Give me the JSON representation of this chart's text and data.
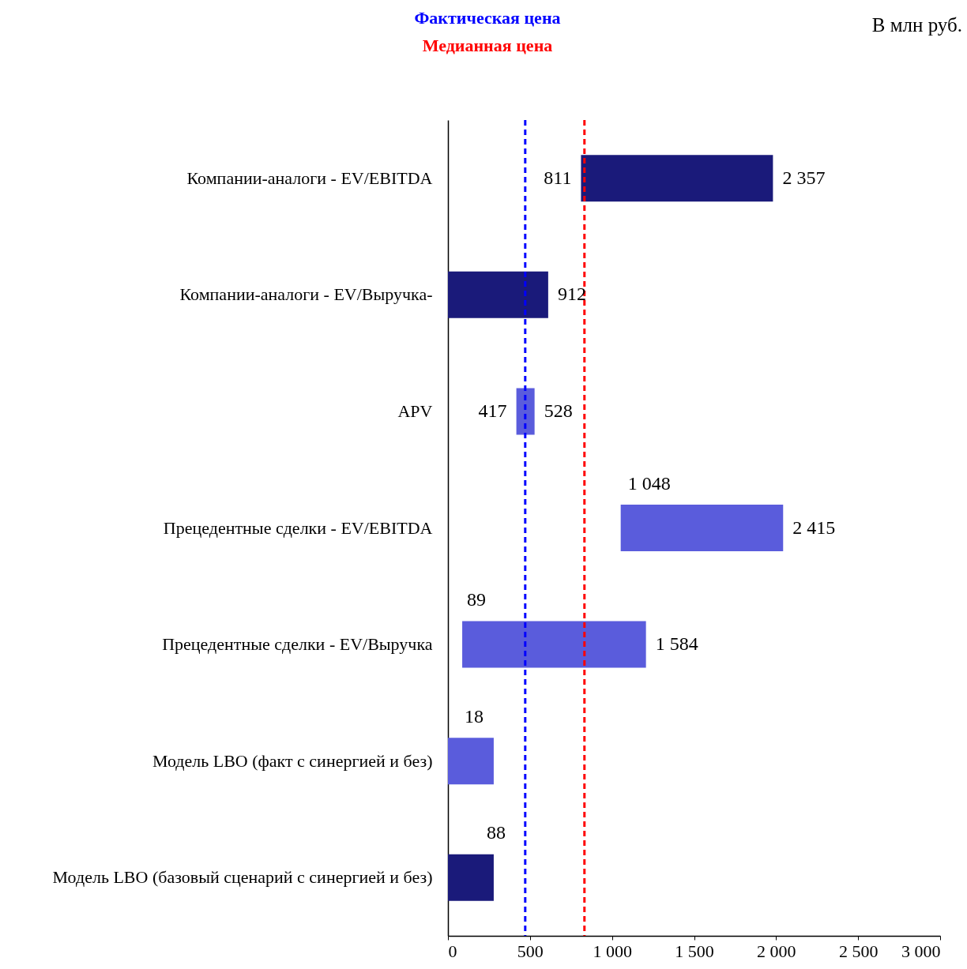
{
  "chart_data": {
    "type": "bar",
    "orientation": "horizontal",
    "categories": [
      "Компании-аналоги - EV/EBITDA",
      "Компании-аналоги - EV/Выручка-",
      "APV",
      "Прецедентные сделки - EV/EBITDA",
      "Прецедентные сделки - EV/Выручка",
      "Модель LBO (факт с синергией и без)",
      "Модель LBO (базовый сценарий с синергией и без)"
    ],
    "base": [
      811,
      0,
      417,
      1053,
      87,
      0,
      0
    ],
    "values": [
      1170,
      611,
      111,
      990,
      1120,
      279,
      279
    ],
    "colors": [
      "#1a1a7a",
      "#1a1a7a",
      "#5a5cdc",
      "#5a5cdc",
      "#5a5cdc",
      "#5a5cdc",
      "#1a1a7a"
    ],
    "xlim": [
      0,
      3000
    ],
    "xticks": [
      0,
      500,
      {
        "value": 1000,
        "label": "1 000"
      },
      {
        "value": 1500,
        "label": "1 500"
      },
      {
        "value": 2000,
        "label": "2 000"
      },
      {
        "value": 2500,
        "label": "2 500"
      },
      {
        "value": 3000,
        "label": "3 000"
      }
    ],
    "ref_lines": [
      {
        "axis": "x",
        "value": 471,
        "label": "Фактическая цена",
        "color": "#0000ff",
        "line_style": "dashed"
      },
      {
        "axis": "x",
        "value": 832,
        "label": "Медианная цена",
        "color": "#ff0000",
        "line_style": "dashed"
      }
    ],
    "annotations": [
      {
        "text": "811",
        "x": 811,
        "y": "Компании-аналоги - EV/EBITDA"
      },
      {
        "text": "2 357",
        "x": 1981,
        "y": "Компании-аналоги - EV/EBITDA"
      },
      {
        "text": "912",
        "x": 611,
        "y": "Компании-аналоги - EV/Выручка-"
      },
      {
        "text": "417",
        "x": 417,
        "y": "APV"
      },
      {
        "text": "528",
        "x": 528,
        "y": "APV"
      },
      {
        "text": "1 048",
        "x": 1053,
        "y": "Прецедентные сделки - EV/EBITDA"
      },
      {
        "text": "2 415",
        "x": 2043,
        "y": "Прецедентные сделки - EV/EBITDA"
      },
      {
        "text": "89",
        "x": 87,
        "y": "Прецедентные сделки - EV/Выручка"
      },
      {
        "text": "1 584",
        "x": 1207,
        "y": "Прецедентные сделки - EV/Выручка"
      },
      {
        "text": "18",
        "x": 0,
        "y": "Модель LBO (факт с синергией и без)"
      },
      {
        "text": "88",
        "x": 279,
        "y": "Модель LBO (базовый сценарий с синергией и без)"
      },
      "В млн руб."
    ],
    "grid": false
  }
}
